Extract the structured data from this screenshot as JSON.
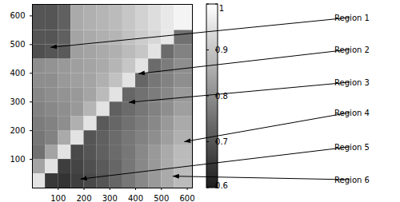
{
  "chart_data": {
    "type": "heatmap",
    "xlim": [
      0,
      620
    ],
    "ylim": [
      0,
      640
    ],
    "xticks": [
      100,
      200,
      300,
      400,
      500,
      600
    ],
    "yticks": [
      100,
      200,
      300,
      400,
      500,
      600
    ],
    "x_edges": [
      0,
      50,
      100,
      150,
      200,
      250,
      300,
      350,
      400,
      450,
      500,
      550,
      620
    ],
    "y_edges": [
      0,
      50,
      100,
      150,
      200,
      250,
      300,
      350,
      400,
      450,
      500,
      550,
      640
    ],
    "z": [
      [
        0.95,
        0.65,
        0.64,
        0.66,
        0.68,
        0.7,
        0.73,
        0.76,
        0.79,
        0.82,
        0.85,
        0.88
      ],
      [
        0.84,
        0.95,
        0.66,
        0.67,
        0.69,
        0.71,
        0.73,
        0.76,
        0.79,
        0.82,
        0.85,
        0.88
      ],
      [
        0.75,
        0.84,
        0.95,
        0.68,
        0.7,
        0.72,
        0.74,
        0.76,
        0.79,
        0.82,
        0.85,
        0.88
      ],
      [
        0.76,
        0.78,
        0.85,
        0.95,
        0.7,
        0.72,
        0.74,
        0.76,
        0.78,
        0.8,
        0.83,
        0.86
      ],
      [
        0.77,
        0.78,
        0.8,
        0.86,
        0.95,
        0.71,
        0.73,
        0.75,
        0.77,
        0.79,
        0.82,
        0.85
      ],
      [
        0.78,
        0.79,
        0.8,
        0.82,
        0.87,
        0.95,
        0.72,
        0.74,
        0.76,
        0.78,
        0.8,
        0.83
      ],
      [
        0.79,
        0.8,
        0.81,
        0.82,
        0.84,
        0.88,
        0.95,
        0.73,
        0.75,
        0.77,
        0.79,
        0.82
      ],
      [
        0.8,
        0.8,
        0.82,
        0.83,
        0.84,
        0.86,
        0.89,
        0.95,
        0.73,
        0.76,
        0.78,
        0.8
      ],
      [
        0.8,
        0.81,
        0.82,
        0.83,
        0.84,
        0.85,
        0.87,
        0.9,
        0.95,
        0.74,
        0.77,
        0.8
      ],
      [
        0.69,
        0.7,
        0.71,
        0.83,
        0.84,
        0.85,
        0.86,
        0.88,
        0.9,
        0.95,
        0.74,
        0.78
      ],
      [
        0.7,
        0.7,
        0.72,
        0.84,
        0.85,
        0.86,
        0.87,
        0.89,
        0.91,
        0.93,
        0.96,
        0.75
      ],
      [
        0.7,
        0.7,
        0.72,
        0.85,
        0.86,
        0.87,
        0.88,
        0.9,
        0.92,
        0.94,
        0.96,
        0.98
      ]
    ],
    "colorbar": {
      "range": [
        0.6,
        1
      ],
      "ticks": [
        0.6,
        0.7,
        0.8,
        0.9,
        1
      ]
    },
    "annotations": [
      {
        "text": "Region 1",
        "x": 72,
        "y": 489
      },
      {
        "text": "Region 2",
        "x": 412,
        "y": 397
      },
      {
        "text": "Region 3",
        "x": 375,
        "y": 297
      },
      {
        "text": "Region 4",
        "x": 590,
        "y": 160
      },
      {
        "text": "Region 5",
        "x": 188,
        "y": 30
      },
      {
        "text": "Region 6",
        "x": 545,
        "y": 40
      }
    ]
  }
}
